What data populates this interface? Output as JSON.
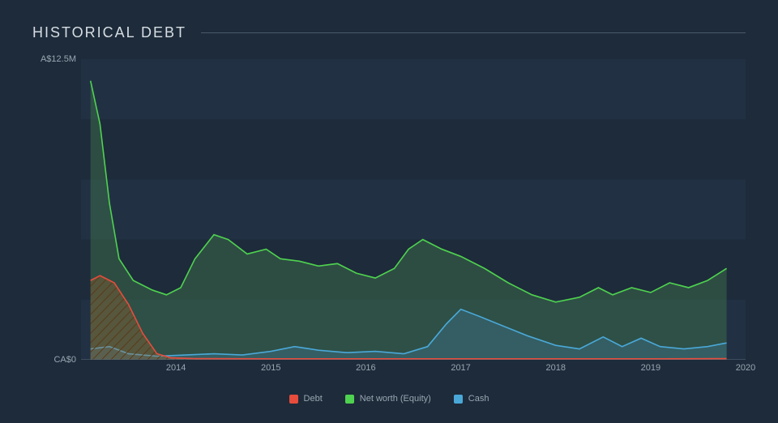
{
  "title": "HISTORICAL DEBT",
  "chart": {
    "type": "area",
    "background_color": "#1d2b3a",
    "plot_band_color": "#26384b",
    "grid_strip_opacity": 0.5,
    "axis_text_color": "#9aa5b1",
    "axis_fontsize": 11,
    "title_color": "#d7dde3",
    "title_fontsize": 18,
    "title_letter_spacing": 2,
    "x_domain": [
      2013.0,
      2020.0
    ],
    "y_domain": [
      0,
      12.5
    ],
    "y_ticks": [
      {
        "value": 0,
        "label": "CA$0"
      },
      {
        "value": 12.5,
        "label": "A$12.5M"
      }
    ],
    "x_ticks": [
      2014,
      2015,
      2016,
      2017,
      2018,
      2019,
      2020
    ],
    "grid_bands_y": [
      [
        0,
        2.5
      ],
      [
        5.0,
        7.5
      ],
      [
        10.0,
        12.5
      ]
    ],
    "series": [
      {
        "id": "equity",
        "label": "Net worth (Equity)",
        "stroke": "#4fd24f",
        "fill": "#3a6a4a",
        "fill_opacity": 0.55,
        "stroke_width": 1.6,
        "points": [
          [
            2013.1,
            11.6
          ],
          [
            2013.2,
            9.8
          ],
          [
            2013.3,
            6.5
          ],
          [
            2013.4,
            4.2
          ],
          [
            2013.55,
            3.3
          ],
          [
            2013.75,
            2.9
          ],
          [
            2013.9,
            2.7
          ],
          [
            2014.05,
            3.0
          ],
          [
            2014.2,
            4.2
          ],
          [
            2014.4,
            5.2
          ],
          [
            2014.55,
            5.0
          ],
          [
            2014.75,
            4.4
          ],
          [
            2014.95,
            4.6
          ],
          [
            2015.1,
            4.2
          ],
          [
            2015.3,
            4.1
          ],
          [
            2015.5,
            3.9
          ],
          [
            2015.7,
            4.0
          ],
          [
            2015.9,
            3.6
          ],
          [
            2016.1,
            3.4
          ],
          [
            2016.3,
            3.8
          ],
          [
            2016.45,
            4.6
          ],
          [
            2016.6,
            5.0
          ],
          [
            2016.8,
            4.6
          ],
          [
            2017.0,
            4.3
          ],
          [
            2017.25,
            3.8
          ],
          [
            2017.5,
            3.2
          ],
          [
            2017.75,
            2.7
          ],
          [
            2018.0,
            2.4
          ],
          [
            2018.25,
            2.6
          ],
          [
            2018.45,
            3.0
          ],
          [
            2018.6,
            2.7
          ],
          [
            2018.8,
            3.0
          ],
          [
            2019.0,
            2.8
          ],
          [
            2019.2,
            3.2
          ],
          [
            2019.4,
            3.0
          ],
          [
            2019.6,
            3.3
          ],
          [
            2019.8,
            3.8
          ]
        ]
      },
      {
        "id": "cash",
        "label": "Cash",
        "stroke": "#4aa8d8",
        "fill": "#3a6a7a",
        "fill_opacity": 0.55,
        "stroke_width": 1.6,
        "points": [
          [
            2013.1,
            0.45
          ],
          [
            2013.3,
            0.55
          ],
          [
            2013.5,
            0.25
          ],
          [
            2013.8,
            0.15
          ],
          [
            2014.1,
            0.2
          ],
          [
            2014.4,
            0.25
          ],
          [
            2014.7,
            0.2
          ],
          [
            2015.0,
            0.35
          ],
          [
            2015.25,
            0.55
          ],
          [
            2015.5,
            0.4
          ],
          [
            2015.8,
            0.3
          ],
          [
            2016.1,
            0.35
          ],
          [
            2016.4,
            0.25
          ],
          [
            2016.65,
            0.55
          ],
          [
            2016.85,
            1.5
          ],
          [
            2017.0,
            2.1
          ],
          [
            2017.2,
            1.8
          ],
          [
            2017.45,
            1.4
          ],
          [
            2017.7,
            1.0
          ],
          [
            2018.0,
            0.6
          ],
          [
            2018.25,
            0.45
          ],
          [
            2018.5,
            0.95
          ],
          [
            2018.7,
            0.55
          ],
          [
            2018.9,
            0.9
          ],
          [
            2019.1,
            0.55
          ],
          [
            2019.35,
            0.45
          ],
          [
            2019.6,
            0.55
          ],
          [
            2019.8,
            0.7
          ]
        ]
      },
      {
        "id": "debt",
        "label": "Debt",
        "stroke": "#e74c3c",
        "fill": "#a0632a",
        "fill_opacity": 0.55,
        "fill_pattern": "hatch",
        "stroke_width": 1.6,
        "points": [
          [
            2013.1,
            3.3
          ],
          [
            2013.2,
            3.5
          ],
          [
            2013.35,
            3.2
          ],
          [
            2013.5,
            2.3
          ],
          [
            2013.65,
            1.1
          ],
          [
            2013.8,
            0.25
          ],
          [
            2013.95,
            0.08
          ],
          [
            2014.2,
            0.05
          ],
          [
            2015.0,
            0.04
          ],
          [
            2016.0,
            0.04
          ],
          [
            2017.0,
            0.04
          ],
          [
            2018.0,
            0.04
          ],
          [
            2019.0,
            0.04
          ],
          [
            2019.8,
            0.05
          ]
        ]
      }
    ],
    "legend": [
      {
        "label": "Debt",
        "color": "#e74c3c"
      },
      {
        "label": "Net worth (Equity)",
        "color": "#4fd24f"
      },
      {
        "label": "Cash",
        "color": "#4aa8d8"
      }
    ]
  }
}
